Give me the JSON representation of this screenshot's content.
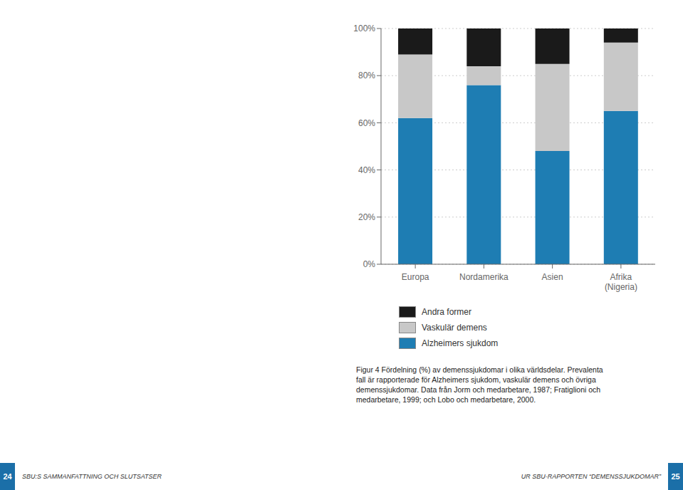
{
  "chart_data": {
    "type": "bar",
    "stacked": true,
    "categories": [
      "Europa",
      "Nordamerika",
      "Asien",
      "Afrika\n(Nigeria)"
    ],
    "series": [
      {
        "name": "Alzheimers sjukdom",
        "color": "#1e7db3",
        "values": [
          62,
          76,
          48,
          65
        ]
      },
      {
        "name": "Vaskulär demens",
        "color": "#c8c8c8",
        "values": [
          27,
          8,
          37,
          29
        ]
      },
      {
        "name": "Andra former",
        "color": "#1a1a1a",
        "values": [
          11,
          16,
          15,
          6
        ]
      }
    ],
    "ylim": [
      0,
      100
    ],
    "yticks": [
      {
        "value": 0,
        "label": "0%"
      },
      {
        "value": 20,
        "label": "20%"
      },
      {
        "value": 40,
        "label": "40%"
      },
      {
        "value": 60,
        "label": "60%"
      },
      {
        "value": 80,
        "label": "80%"
      },
      {
        "value": 100,
        "label": "100%"
      }
    ],
    "grid": true,
    "annotations": [
      "Figur 4 Fördelning (%) av demenssjukdomar i olika världsdelar. Prevalenta\nfall är rapporterade för Alzheimers sjukdom, vaskulär demens och övriga\ndemenssjukdomar. Data från Jorm och medarbetare, 1987; Fratiglioni och\nmedarbetare, 1999; och Lobo och medarbetare, 2000.",
      "SBU:S SAMMANFATTNING OCH SLUTSATSER",
      "UR SBU-RAPPORTEN “DEMENSSJUKDOMAR”",
      "24",
      "25"
    ]
  }
}
